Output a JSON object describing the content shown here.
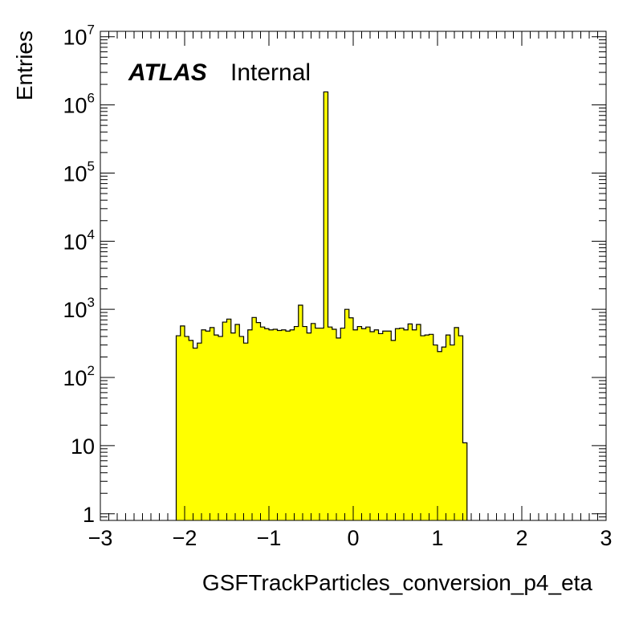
{
  "chart_data": {
    "type": "histogram",
    "xlabel": "GSFTrackParticles_conversion_p4_eta",
    "ylabel": "Entries",
    "label": {
      "experiment": "ATLAS",
      "status": "Internal"
    },
    "xlim": [
      -3,
      3
    ],
    "ylim": [
      0.8,
      12000000
    ],
    "ylog": true,
    "grid": false,
    "fill_color": "#ffff00",
    "line_color": "#000000",
    "x_ticks": [
      -3,
      -2,
      -1,
      0,
      1,
      2,
      3
    ],
    "x_tick_labels": [
      "−3",
      "−2",
      "−1",
      "0",
      "1",
      "2",
      "3"
    ],
    "y_ticks": [
      {
        "value": 1,
        "base": "1",
        "exp": ""
      },
      {
        "value": 10,
        "base": "10",
        "exp": ""
      },
      {
        "value": 100,
        "base": "10",
        "exp": "2"
      },
      {
        "value": 1000,
        "base": "10",
        "exp": "3"
      },
      {
        "value": 10000,
        "base": "10",
        "exp": "4"
      },
      {
        "value": 100000,
        "base": "10",
        "exp": "5"
      },
      {
        "value": 1000000,
        "base": "10",
        "exp": "6"
      },
      {
        "value": 10000000,
        "base": "10",
        "exp": "7"
      }
    ],
    "bin_edges_start": -2.1,
    "bin_width": 0.05,
    "values": [
      410,
      570,
      400,
      350,
      270,
      320,
      500,
      480,
      540,
      420,
      400,
      650,
      720,
      450,
      600,
      400,
      320,
      500,
      760,
      640,
      550,
      520,
      500,
      510,
      490,
      500,
      480,
      500,
      560,
      1150,
      560,
      450,
      620,
      530,
      530,
      1550000,
      550,
      510,
      380,
      530,
      1000,
      750,
      500,
      560,
      520,
      550,
      470,
      500,
      440,
      480,
      480,
      350,
      520,
      530,
      500,
      610,
      500,
      600,
      410,
      420,
      430,
      300,
      240,
      280,
      420,
      300,
      540,
      410,
      11
    ]
  }
}
